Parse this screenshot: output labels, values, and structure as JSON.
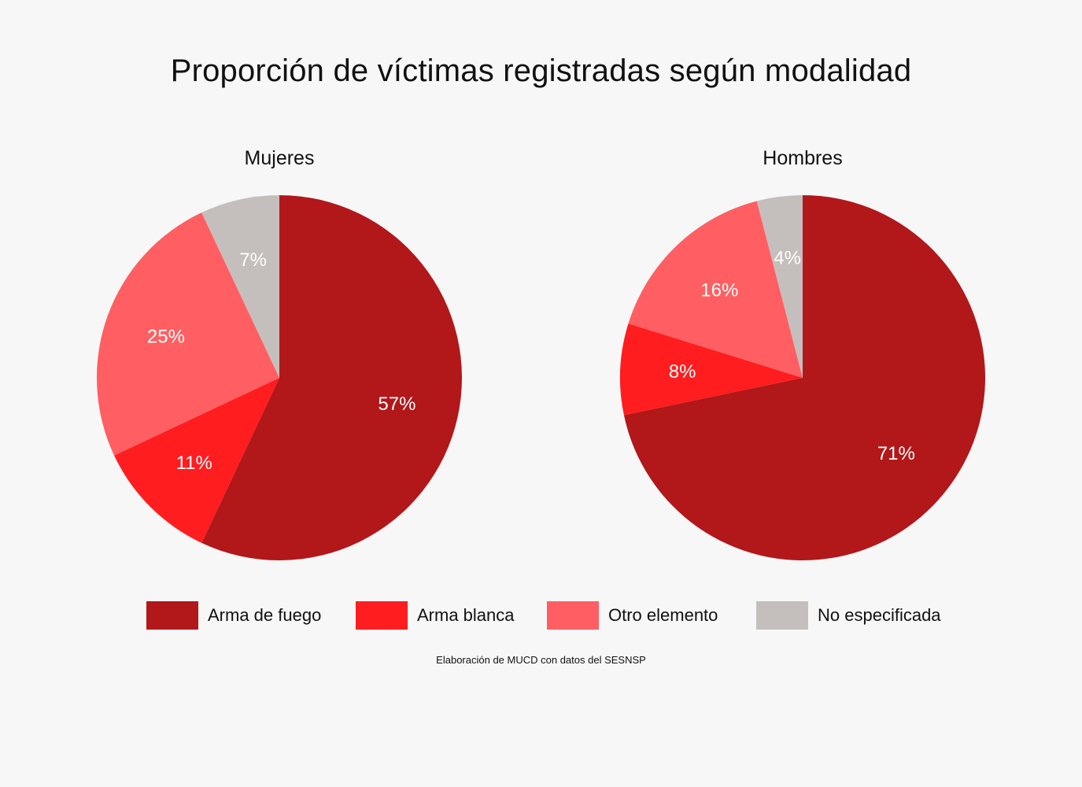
{
  "title": "Proporción de víctimas registradas según modalidad",
  "source": "Elaboración de MUCD con datos del SESNSP",
  "legend": [
    {
      "label": "Arma de fuego",
      "color": "#b2171a"
    },
    {
      "label": "Arma blanca",
      "color": "#ff1d1f"
    },
    {
      "label": "Otro elemento",
      "color": "#ff5f62"
    },
    {
      "label": "No especificada",
      "color": "#c4bfbc"
    }
  ],
  "chart_data": [
    {
      "type": "pie",
      "title": "Mujeres",
      "categories": [
        "Arma de fuego",
        "Arma blanca",
        "Otro elemento",
        "No especificada"
      ],
      "values": [
        57,
        11,
        25,
        7
      ],
      "labels": [
        "57%",
        "11%",
        "25%",
        "7%"
      ],
      "colors": [
        "#b2171a",
        "#ff1d1f",
        "#ff5f62",
        "#c4bfbc"
      ],
      "start": "top",
      "direction": "clockwise"
    },
    {
      "type": "pie",
      "title": "Hombres",
      "categories": [
        "Arma de fuego",
        "Arma blanca",
        "Otro elemento",
        "No especificada"
      ],
      "values": [
        71,
        8,
        16,
        4
      ],
      "labels": [
        "71%",
        "8%",
        "16%",
        "4%"
      ],
      "colors": [
        "#b2171a",
        "#ff1d1f",
        "#ff5f62",
        "#c4bfbc"
      ],
      "start": "top",
      "direction": "clockwise"
    }
  ]
}
